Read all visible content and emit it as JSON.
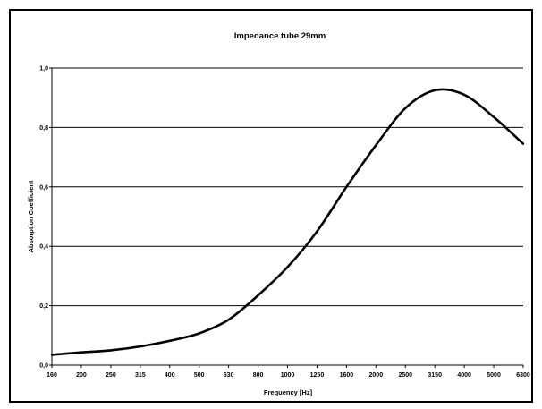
{
  "chart_data": {
    "type": "line",
    "title": "Impedance tube 29mm",
    "xlabel": "Frequency [Hz]",
    "ylabel": "Absorption Coefficient",
    "x_scale": "log",
    "categories": [
      "160",
      "200",
      "250",
      "315",
      "400",
      "500",
      "630",
      "800",
      "1000",
      "1250",
      "1600",
      "2000",
      "2500",
      "3150",
      "4000",
      "5000",
      "6300"
    ],
    "y_ticks": [
      "0,0",
      "0,2",
      "0,4",
      "0,6",
      "0,8",
      "1,0"
    ],
    "ylim": [
      0,
      1
    ],
    "grid": "horizontal",
    "series": [
      {
        "color": "#000000",
        "values": [
          0.035,
          0.043,
          0.05,
          0.063,
          0.082,
          0.107,
          0.153,
          0.235,
          0.33,
          0.45,
          0.6,
          0.74,
          0.865,
          0.925,
          0.91,
          0.835,
          0.745
        ]
      }
    ]
  }
}
